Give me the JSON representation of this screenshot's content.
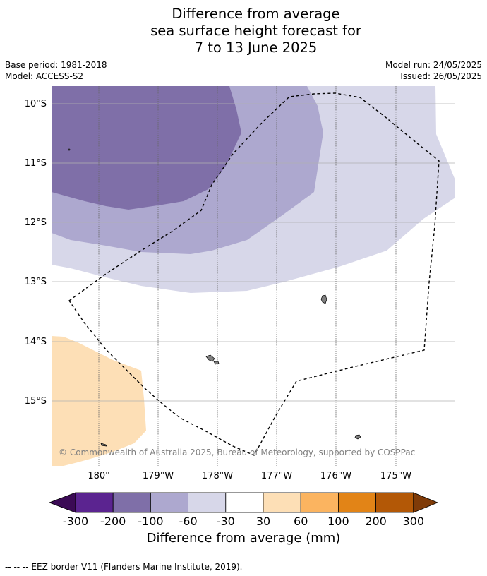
{
  "title": {
    "line1": "Difference from average",
    "line2": "sea surface height forecast for",
    "line3": "7 to 13 June 2025"
  },
  "meta": {
    "base_period": "Base period: 1981-2018",
    "model": "Model: ACCESS-S2",
    "model_run": "Model run: 24/05/2025",
    "issued": "Issued: 26/05/2025"
  },
  "map": {
    "latitude_labels": [
      "10°S",
      "11°S",
      "12°S",
      "13°S",
      "14°S",
      "15°S"
    ],
    "longitude_labels": [
      "180°",
      "179°W",
      "178°W",
      "177°W",
      "176°W",
      "175°W"
    ],
    "copyright": "© Commonwealth of Australia 2025, Bureau of Meteorology, supported by COSPPac",
    "colors": {
      "minus200_minus100": "#7f6fa8",
      "minus100_minus60": "#ada8cf",
      "minus60_minus30": "#d7d7e9",
      "plus30_plus60": "#fddfb6",
      "land": "#808080"
    }
  },
  "colorbar": {
    "ticks": [
      "-300",
      "-200",
      "-100",
      "-60",
      "-30",
      "30",
      "60",
      "100",
      "200",
      "300"
    ],
    "colors": [
      "#3b0a55",
      "#5b2490",
      "#7f6fa8",
      "#ada8cf",
      "#d7d7e9",
      "#ffffff",
      "#fddfb6",
      "#fbb460",
      "#e28417",
      "#b35806",
      "#7f3b08"
    ],
    "label": "Difference from average (mm)"
  },
  "footnote": "--  --  -- EEZ border V11 (Flanders Marine Institute, 2019)."
}
